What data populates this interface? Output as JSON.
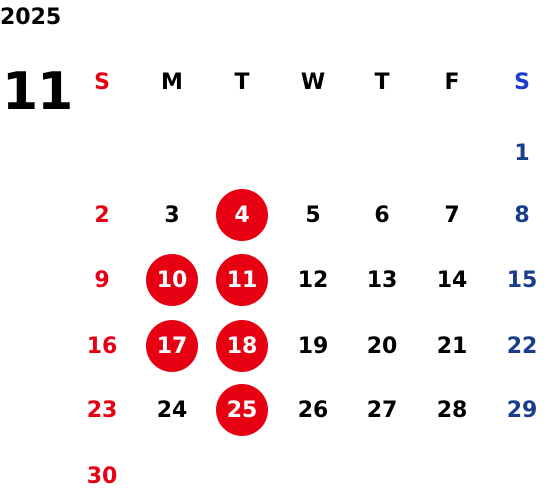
{
  "calendar": {
    "year": "2025",
    "month": "11",
    "weekday_labels": [
      "S",
      "M",
      "T",
      "W",
      "T",
      "F",
      "S"
    ],
    "weeks": [
      [
        "",
        "",
        "",
        "",
        "",
        "",
        "1"
      ],
      [
        "2",
        "3",
        "4",
        "5",
        "6",
        "7",
        "8"
      ],
      [
        "9",
        "10",
        "11",
        "12",
        "13",
        "14",
        "15"
      ],
      [
        "16",
        "17",
        "18",
        "19",
        "20",
        "21",
        "22"
      ],
      [
        "23",
        "24",
        "25",
        "26",
        "27",
        "28",
        "29"
      ],
      [
        "30",
        "",
        "",
        "",
        "",
        "",
        ""
      ]
    ],
    "highlighted_days": [
      "4",
      "10",
      "11",
      "17",
      "18",
      "25"
    ]
  },
  "colors": {
    "sunday": "#e60012",
    "saturday": "#1a3c8c",
    "saturday_header": "#1a3cd0",
    "weekday": "#000000",
    "highlight_circle": "#e60012",
    "highlight_text": "#ffffff"
  }
}
